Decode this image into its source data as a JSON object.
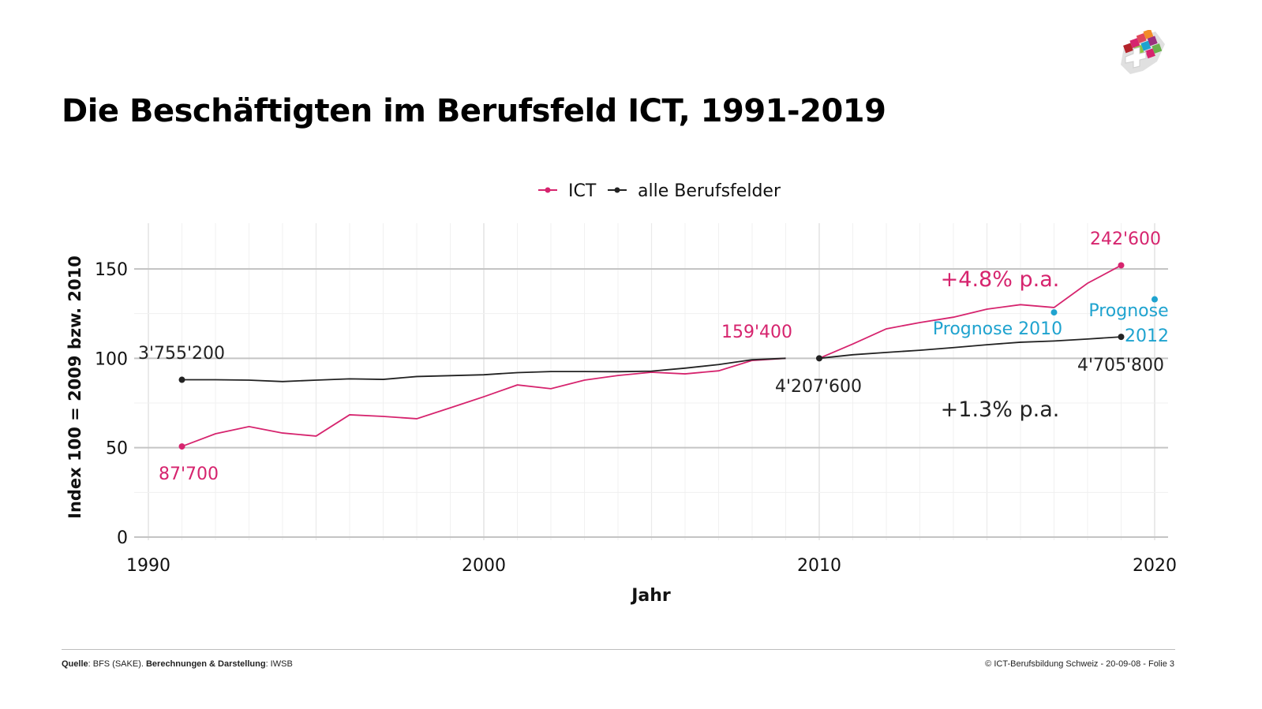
{
  "title": "Die Beschäftigten im Berufsfeld ICT, 1991-2019",
  "footer": {
    "source_label": "Quelle",
    "source_value": ": BFS (SAKE). ",
    "calc_label": "Berechnungen & Darstellung",
    "calc_value": ": IWSB",
    "right": "© ICT-Berufsbildung Schweiz - 20-09-08 - Folie 3"
  },
  "chart_data": {
    "type": "line",
    "title": "",
    "xlabel": "Jahr",
    "ylabel": "Index 100 = 2009 bzw. 2010",
    "xlim": [
      1990,
      2020
    ],
    "ylim": [
      0,
      165
    ],
    "xticks": [
      1990,
      2000,
      2010,
      2020
    ],
    "yticks": [
      0,
      50,
      100,
      150
    ],
    "grid": true,
    "legend_position": "top",
    "series": [
      {
        "name": "ICT",
        "color": "#d6246e",
        "segments": [
          {
            "x": [
              1991,
              1992,
              1993,
              1994,
              1995,
              1996,
              1997,
              1998,
              1999,
              2000,
              2001,
              2002,
              2003,
              2004,
              2005,
              2006,
              2007,
              2008,
              2009
            ],
            "y": [
              50.7,
              57.8,
              61.8,
              58.2,
              56.5,
              68.4,
              67.5,
              66.2,
              72.3,
              78.5,
              85.1,
              83,
              87.8,
              90.4,
              92.2,
              91.3,
              93,
              98.8,
              100
            ]
          },
          {
            "x": [
              2010,
              2011,
              2012,
              2013,
              2014,
              2015,
              2016,
              2017,
              2018,
              2019
            ],
            "y": [
              100,
              108,
              116.5,
              120,
              123,
              127.5,
              130,
              128.4,
              142,
              152
            ]
          }
        ],
        "end_points": [
          [
            1991,
            50.7
          ],
          [
            2019,
            152
          ]
        ]
      },
      {
        "name": "alle Berufsfelder",
        "color": "#222222",
        "segments": [
          {
            "x": [
              1991,
              1992,
              1993,
              1994,
              1995,
              1996,
              1997,
              1998,
              1999,
              2000,
              2001,
              2002,
              2003,
              2004,
              2005,
              2006,
              2007,
              2008,
              2009
            ],
            "y": [
              88,
              88,
              87.8,
              87,
              87.8,
              88.5,
              88.2,
              89.8,
              90.3,
              90.8,
              92,
              92.6,
              92.6,
              92.5,
              92.8,
              94.5,
              96.5,
              99.2,
              100
            ]
          },
          {
            "x": [
              2010,
              2011,
              2012,
              2013,
              2014,
              2015,
              2016,
              2017,
              2018,
              2019
            ],
            "y": [
              100,
              102,
              103.3,
              104.5,
              106,
              107.6,
              109,
              109.7,
              110.8,
              112
            ]
          }
        ],
        "end_points": [
          [
            1991,
            88
          ],
          [
            2010,
            100
          ],
          [
            2019,
            112
          ]
        ]
      }
    ],
    "forecast_points": {
      "color": "#1fa3cf",
      "points": [
        [
          2017,
          125.7
        ],
        [
          2020,
          133
        ]
      ]
    },
    "annotations": [
      {
        "text": "242'600",
        "x": 2019,
        "y": 152,
        "color": "#d6246e"
      },
      {
        "text": "159'400",
        "x": 2009,
        "y": 100,
        "color": "#d6246e"
      },
      {
        "text": "87'700",
        "x": 1991,
        "y": 50.7,
        "color": "#d6246e"
      },
      {
        "text": "3'755'200",
        "x": 1991,
        "y": 88,
        "color": "#222222"
      },
      {
        "text": "4'207'600",
        "x": 2010,
        "y": 100,
        "color": "#222222"
      },
      {
        "text": "4'705'800",
        "x": 2019,
        "y": 112,
        "color": "#222222"
      },
      {
        "text": "+4.8% p.a.",
        "color": "#d6246e"
      },
      {
        "text": "+1.3% p.a.",
        "color": "#222222"
      },
      {
        "text": "Prognose 2010",
        "color": "#1fa3cf"
      },
      {
        "text": "Prognose",
        "color": "#1fa3cf"
      },
      {
        "text": "2012",
        "color": "#1fa3cf"
      }
    ]
  }
}
